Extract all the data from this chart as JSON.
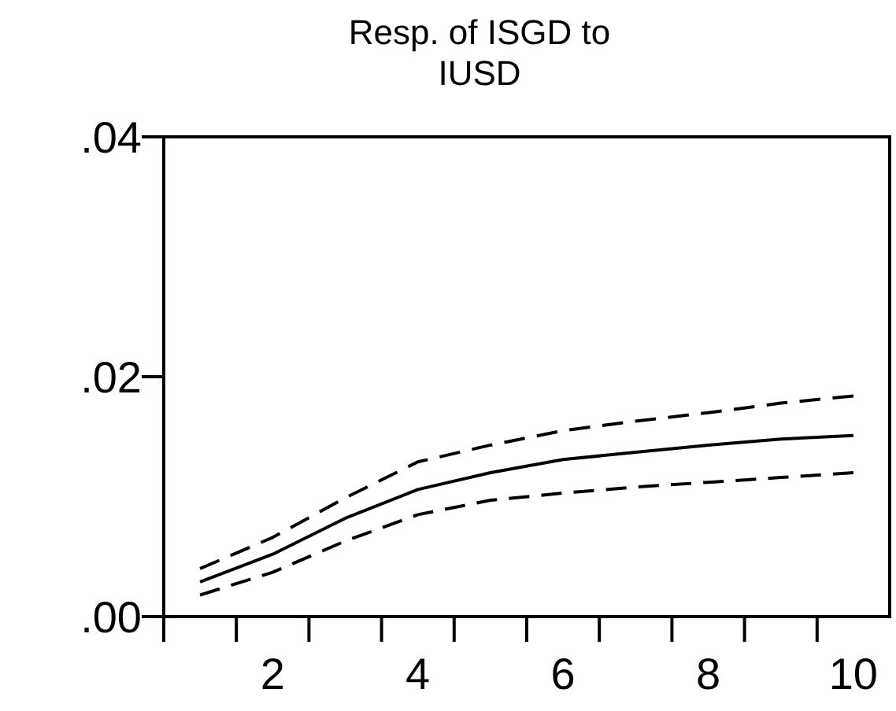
{
  "chart_data": {
    "type": "line",
    "title": "Resp. of ISGD to IUSD",
    "categories": [
      null,
      "2",
      null,
      "4",
      null,
      "6",
      null,
      "8",
      null,
      "10"
    ],
    "series": [
      {
        "color": "#000000",
        "line_style": "solid",
        "values": [
          0.0029,
          0.0052,
          0.0082,
          0.0106,
          0.012,
          0.0131,
          0.0137,
          0.0143,
          0.0148,
          0.0151
        ]
      },
      {
        "color": "#000000",
        "line_style": "dashed",
        "values": [
          0.004,
          0.0066,
          0.0099,
          0.0129,
          0.0143,
          0.0155,
          0.0163,
          0.017,
          0.0178,
          0.0184
        ]
      },
      {
        "color": "#000000",
        "line_style": "dashed",
        "values": [
          0.0018,
          0.0037,
          0.0063,
          0.0085,
          0.0097,
          0.0103,
          0.0108,
          0.0112,
          0.0116,
          0.012
        ]
      }
    ],
    "ylim": [
      0,
      0.04
    ],
    "yticks": [
      {
        "value": 0,
        "label": ".00"
      },
      {
        "value": 0.02,
        "label": ".02"
      },
      {
        "value": 0.04,
        "label": ".04"
      }
    ],
    "grid": false
  }
}
